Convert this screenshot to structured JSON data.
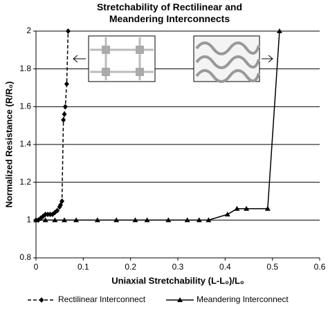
{
  "chart_data": {
    "type": "line",
    "title": "Stretchability of Rectilinear and Meandering Interconnects",
    "x_label": "Uniaxial Stretchability (L-L₀)/L₀",
    "y_label": "Normalized Resistance (R/R₀)",
    "xlim": [
      0,
      0.6
    ],
    "xticks": [
      0,
      0.1,
      0.2,
      0.3,
      0.4,
      0.5,
      0.6
    ],
    "ylim": [
      0.8,
      2
    ],
    "yticks": [
      0.8,
      1,
      1.2,
      1.4,
      1.6,
      1.8,
      2
    ],
    "grid": true,
    "legend": "bottom",
    "series": [
      {
        "name": "Rectilinear Interconnect",
        "color": "#000000",
        "line_style": "dashed",
        "marker": "diamond",
        "x": [
          0,
          0.005,
          0.01,
          0.015,
          0.02,
          0.025,
          0.03,
          0.035,
          0.04,
          0.045,
          0.05,
          0.052,
          0.055,
          0.058,
          0.06,
          0.062,
          0.065,
          0.068
        ],
        "values": [
          1,
          1,
          1.01,
          1.02,
          1.03,
          1.03,
          1.03,
          1.03,
          1.04,
          1.05,
          1.07,
          1.08,
          1.1,
          1.53,
          1.56,
          1.6,
          1.72,
          2
        ]
      },
      {
        "name": "Meandering Interconnect",
        "color": "#000000",
        "line_style": "solid",
        "marker": "triangle",
        "x": [
          0,
          0.02,
          0.04,
          0.06,
          0.085,
          0.13,
          0.17,
          0.21,
          0.235,
          0.28,
          0.32,
          0.345,
          0.365,
          0.405,
          0.425,
          0.445,
          0.49,
          0.515
        ],
        "values": [
          1,
          1,
          1,
          1,
          1,
          1,
          1,
          1,
          1,
          1,
          1,
          1,
          1,
          1.03,
          1.06,
          1.06,
          1.06,
          2
        ]
      }
    ]
  }
}
